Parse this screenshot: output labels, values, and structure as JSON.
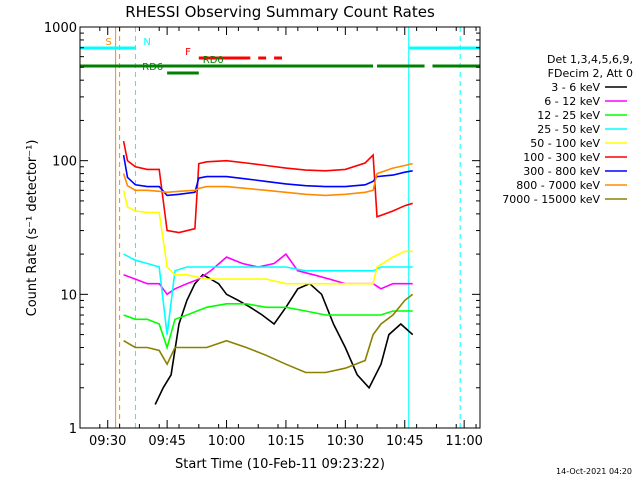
{
  "chart_data": {
    "type": "line",
    "title": "RHESSI Observing Summary Count Rates",
    "xlabel": "Start Time (10-Feb-11 09:23:22)",
    "ylabel": "Count Rate (s⁻¹ detector⁻¹)",
    "y_scale": "log",
    "xlim": [
      "09:23",
      "11:04"
    ],
    "ylim": [
      1,
      1000
    ],
    "x_ticks": [
      "09:30",
      "09:45",
      "10:00",
      "10:15",
      "10:30",
      "10:45",
      "11:00"
    ],
    "y_ticks": [
      "1",
      "10",
      "100",
      "1000"
    ],
    "grid": false,
    "legend_title": [
      "Det 1,3,4,5,6,9,",
      "FDecim 2, Att 0"
    ],
    "timestamp": "14-Oct-2021 04:20",
    "series": [
      {
        "name": "3 - 6 keV",
        "color": "#000000",
        "x": [
          "09:42",
          "09:44",
          "09:46",
          "09:48",
          "09:50",
          "09:52",
          "09:54",
          "09:56",
          "09:58",
          "10:00",
          "10:03",
          "10:06",
          "10:09",
          "10:12",
          "10:15",
          "10:18",
          "10:21",
          "10:24",
          "10:27",
          "10:30",
          "10:33",
          "10:36",
          "10:39",
          "10:41",
          "10:44",
          "10:47"
        ],
        "y": [
          1.5,
          2,
          2.5,
          6,
          9,
          12,
          14,
          13,
          12,
          10,
          9,
          8,
          7,
          6,
          8,
          11,
          12,
          10,
          6,
          4,
          2.5,
          2,
          3,
          5,
          6,
          5
        ]
      },
      {
        "name": "6 - 12 keV",
        "color": "#ff00ff",
        "x": [
          "09:34",
          "09:37",
          "09:40",
          "09:43",
          "09:45",
          "09:47",
          "09:50",
          "09:53",
          "09:56",
          "10:00",
          "10:04",
          "10:08",
          "10:12",
          "10:15",
          "10:18",
          "10:22",
          "10:26",
          "10:30",
          "10:34",
          "10:37",
          "10:39",
          "10:42",
          "10:45",
          "10:47"
        ],
        "y": [
          14,
          13,
          12,
          12,
          10,
          11,
          12,
          13,
          15,
          19,
          17,
          16,
          17,
          20,
          15,
          14,
          13,
          12,
          12,
          12,
          11,
          12,
          12,
          12
        ]
      },
      {
        "name": "12 - 25 keV",
        "color": "#00ff00",
        "x": [
          "09:34",
          "09:37",
          "09:40",
          "09:43",
          "09:45",
          "09:47",
          "09:50",
          "09:55",
          "10:00",
          "10:05",
          "10:10",
          "10:15",
          "10:20",
          "10:25",
          "10:30",
          "10:35",
          "10:37",
          "10:39",
          "10:42",
          "10:45",
          "10:47"
        ],
        "y": [
          7,
          6.5,
          6.5,
          6,
          4,
          6.5,
          7,
          8,
          8.5,
          8.5,
          8,
          8,
          7.5,
          7,
          7,
          7,
          7,
          7,
          7.5,
          7.5,
          7.5
        ]
      },
      {
        "name": "25 - 50 keV",
        "color": "#00ffff",
        "x": [
          "09:34",
          "09:37",
          "09:40",
          "09:43",
          "09:45",
          "09:47",
          "09:50",
          "09:55",
          "10:00",
          "10:05",
          "10:10",
          "10:15",
          "10:20",
          "10:25",
          "10:30",
          "10:35",
          "10:37",
          "10:39",
          "10:42",
          "10:45",
          "10:47"
        ],
        "y": [
          20,
          18,
          17,
          16,
          5,
          15,
          16,
          16,
          16,
          16,
          16,
          16,
          15,
          15,
          15,
          15,
          15,
          16,
          16,
          16,
          16
        ]
      },
      {
        "name": "50 - 100 keV",
        "color": "#ffff00",
        "x": [
          "09:34",
          "09:35",
          "09:37",
          "09:40",
          "09:43",
          "09:45",
          "09:47",
          "09:50",
          "09:55",
          "10:00",
          "10:05",
          "10:10",
          "10:15",
          "10:20",
          "10:25",
          "10:30",
          "10:35",
          "10:37",
          "10:38",
          "10:42",
          "10:45",
          "10:47"
        ],
        "y": [
          60,
          45,
          42,
          41,
          41,
          16,
          14,
          14,
          13,
          13,
          13,
          13,
          12,
          12,
          12,
          12,
          12,
          12,
          16,
          19,
          21,
          21
        ]
      },
      {
        "name": "100 - 300 keV",
        "color": "#ff0000",
        "x": [
          "09:34",
          "09:35",
          "09:37",
          "09:40",
          "09:43",
          "09:45",
          "09:48",
          "09:52",
          "09:53",
          "09:55",
          "10:00",
          "10:05",
          "10:10",
          "10:15",
          "10:20",
          "10:25",
          "10:30",
          "10:35",
          "10:37",
          "10:38",
          "10:42",
          "10:45",
          "10:47"
        ],
        "y": [
          140,
          100,
          90,
          86,
          86,
          30,
          29,
          31,
          95,
          98,
          100,
          96,
          92,
          88,
          85,
          84,
          86,
          96,
          110,
          38,
          42,
          46,
          48
        ]
      },
      {
        "name": "300 - 800 keV",
        "color": "#0000ff",
        "x": [
          "09:34",
          "09:35",
          "09:37",
          "09:40",
          "09:43",
          "09:45",
          "09:48",
          "09:52",
          "09:53",
          "09:55",
          "10:00",
          "10:05",
          "10:10",
          "10:15",
          "10:20",
          "10:25",
          "10:30",
          "10:35",
          "10:37",
          "10:38",
          "10:42",
          "10:45",
          "10:47"
        ],
        "y": [
          110,
          75,
          66,
          64,
          64,
          55,
          56,
          58,
          74,
          76,
          76,
          73,
          70,
          67,
          65,
          64,
          64,
          66,
          70,
          76,
          78,
          82,
          84
        ]
      },
      {
        "name": "800 - 7000 keV",
        "color": "#ff8c00",
        "x": [
          "09:34",
          "09:35",
          "09:37",
          "09:40",
          "09:43",
          "09:45",
          "09:48",
          "09:52",
          "09:53",
          "09:55",
          "10:00",
          "10:05",
          "10:10",
          "10:15",
          "10:20",
          "10:25",
          "10:30",
          "10:35",
          "10:37",
          "10:38",
          "10:42",
          "10:45",
          "10:47"
        ],
        "y": [
          80,
          65,
          60,
          60,
          59,
          58,
          59,
          60,
          62,
          64,
          64,
          62,
          60,
          58,
          56,
          55,
          56,
          58,
          60,
          80,
          88,
          92,
          95
        ]
      },
      {
        "name": "7000 - 15000 keV",
        "color": "#8b8000",
        "x": [
          "09:34",
          "09:37",
          "09:40",
          "09:43",
          "09:45",
          "09:47",
          "09:50",
          "09:55",
          "10:00",
          "10:05",
          "10:10",
          "10:15",
          "10:20",
          "10:25",
          "10:30",
          "10:35",
          "10:37",
          "10:39",
          "10:42",
          "10:45",
          "10:47"
        ],
        "y": [
          4.5,
          4,
          4,
          3.8,
          3,
          4,
          4,
          4,
          4.5,
          4,
          3.5,
          3,
          2.6,
          2.6,
          2.8,
          3.2,
          5,
          6,
          7,
          9,
          10
        ]
      }
    ],
    "flag_bars": [
      {
        "label": "S",
        "color": "#ff8c00",
        "segments": [
          [
            "09:32",
            "09:33"
          ]
        ]
      },
      {
        "label": "N",
        "color": "#00ffff",
        "segments": [
          [
            "09:23",
            "09:37"
          ],
          [
            "10:46",
            "11:04"
          ]
        ]
      },
      {
        "label": "F",
        "color": "#ff0000",
        "segments": [
          [
            "09:53",
            "10:06"
          ],
          [
            "10:08",
            "10:10"
          ],
          [
            "10:12",
            "10:14"
          ]
        ]
      },
      {
        "label": "RD0",
        "color": "#008000",
        "segments": [
          [
            "09:23",
            "10:37"
          ],
          [
            "10:38",
            "10:50"
          ],
          [
            "10:52",
            "11:04"
          ]
        ]
      },
      {
        "label": "RD6",
        "color": "#008000",
        "segments": [
          [
            "09:45",
            "09:53"
          ]
        ]
      }
    ],
    "vertical_markers": [
      {
        "time": "09:32",
        "color": "#ff8c00",
        "style": "solid"
      },
      {
        "time": "09:33",
        "color": "#ff8c00",
        "style": "dashed"
      },
      {
        "time": "09:37",
        "color": "#00ffff",
        "style": "dashed"
      },
      {
        "time": "10:46",
        "color": "#00ffff",
        "style": "solid"
      },
      {
        "time": "10:59",
        "color": "#00ffff",
        "style": "dashed"
      }
    ]
  }
}
